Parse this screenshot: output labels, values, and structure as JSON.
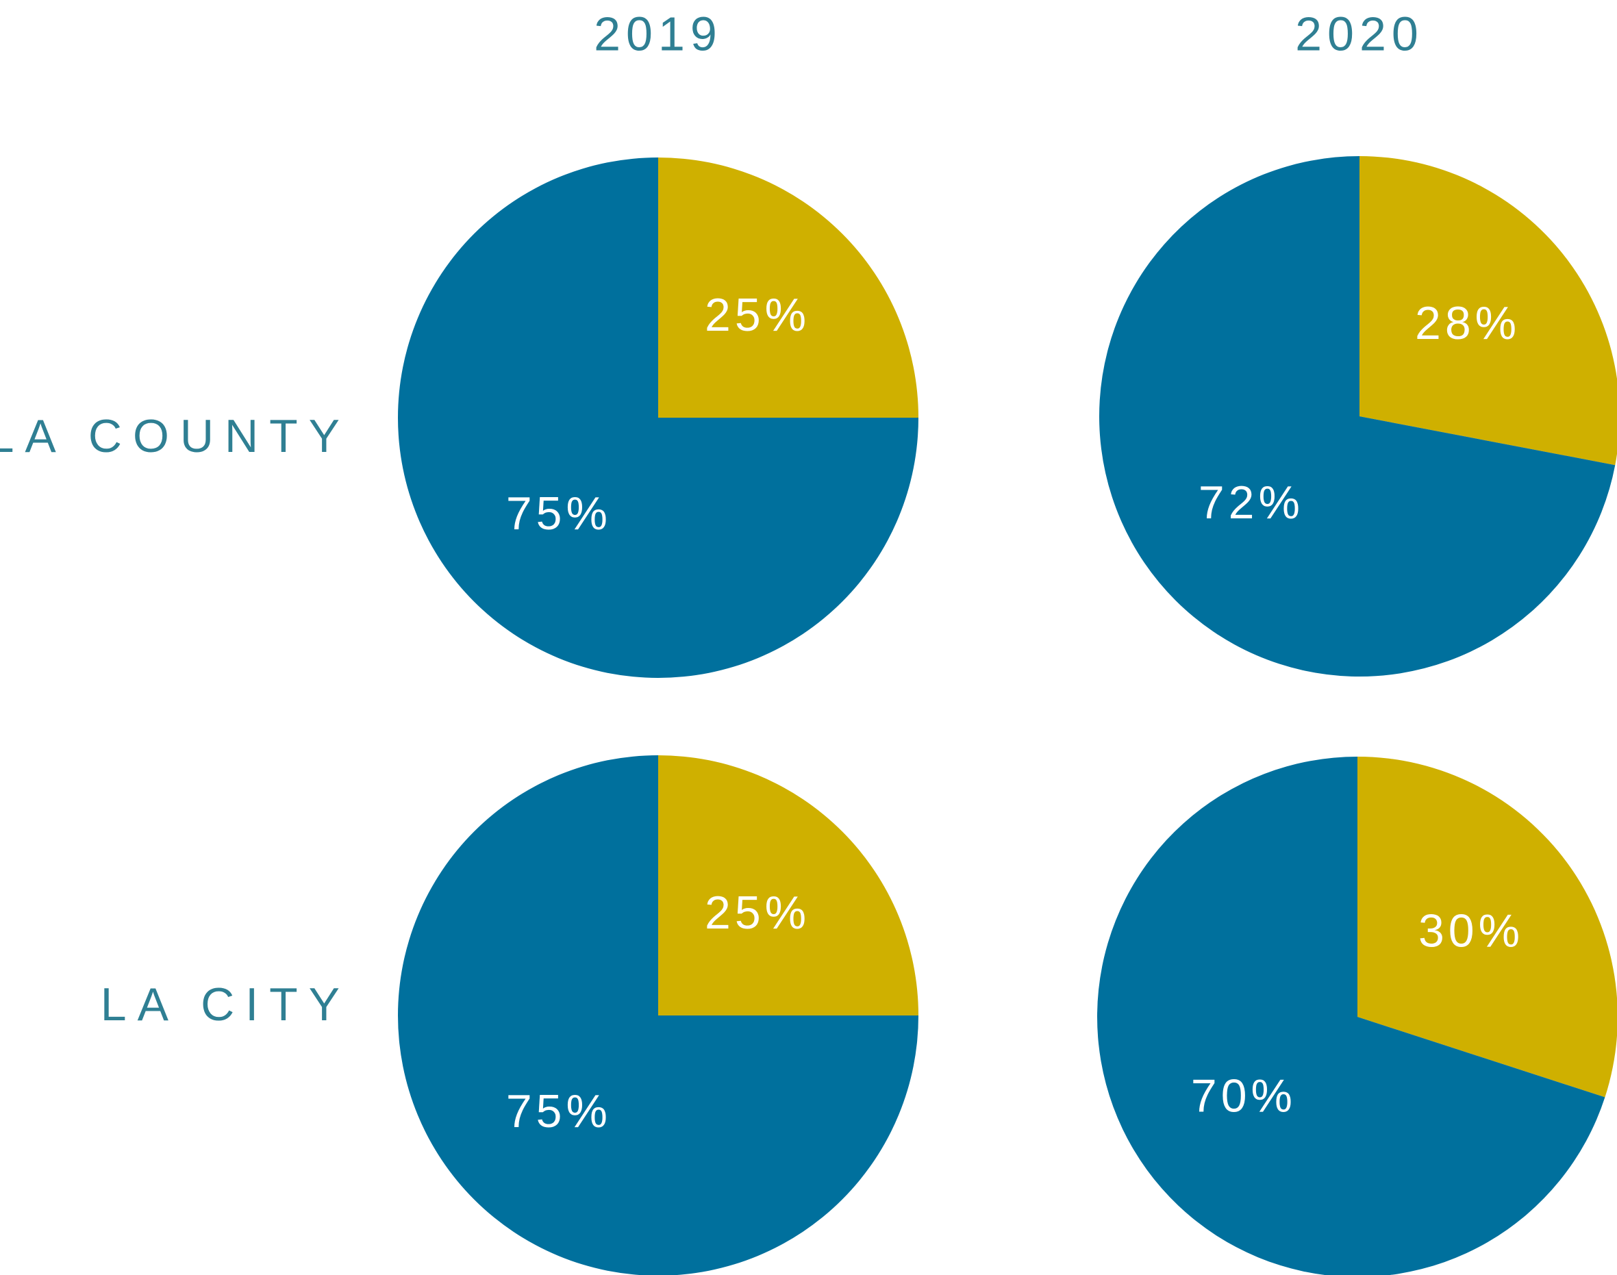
{
  "columns": [
    "2019",
    "2020"
  ],
  "rows": [
    "LA COUNTY",
    "LA CITY"
  ],
  "chart_data": [
    {
      "type": "pie",
      "values": [
        25,
        75
      ],
      "value_labels": [
        "25%",
        "75%"
      ],
      "colors": [
        "#cfb000",
        "#00709d"
      ]
    },
    {
      "type": "pie",
      "values": [
        28,
        72
      ],
      "value_labels": [
        "28%",
        "72%"
      ],
      "colors": [
        "#cfb000",
        "#00709d"
      ]
    },
    {
      "type": "pie",
      "values": [
        25,
        75
      ],
      "value_labels": [
        "25%",
        "75%"
      ],
      "colors": [
        "#cfb000",
        "#00709d"
      ]
    },
    {
      "type": "pie",
      "values": [
        30,
        70
      ],
      "value_labels": [
        "30%",
        "70%"
      ],
      "colors": [
        "#cfb000",
        "#00709d"
      ]
    }
  ]
}
